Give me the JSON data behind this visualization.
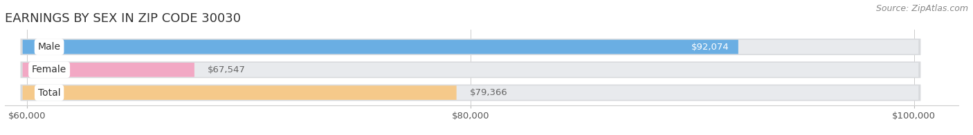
{
  "title": "EARNINGS BY SEX IN ZIP CODE 30030",
  "source": "Source: ZipAtlas.com",
  "categories": [
    "Male",
    "Female",
    "Total"
  ],
  "values": [
    92074,
    67547,
    79366
  ],
  "bar_colors": [
    "#6aaee3",
    "#f2a8c4",
    "#f5c98a"
  ],
  "label_colors": [
    "#ffffff",
    "#666666",
    "#666666"
  ],
  "label_inside": [
    true,
    false,
    false
  ],
  "xmin": 60000,
  "xmax": 100000,
  "xticks": [
    60000,
    80000,
    100000
  ],
  "xtick_labels": [
    "$60,000",
    "$80,000",
    "$100,000"
  ],
  "background_color": "#ffffff",
  "bar_background": "#e8eaed",
  "bar_border_color": "#d8dadd",
  "title_fontsize": 13,
  "source_fontsize": 9,
  "tick_fontsize": 9.5,
  "label_fontsize": 9.5,
  "category_fontsize": 10
}
